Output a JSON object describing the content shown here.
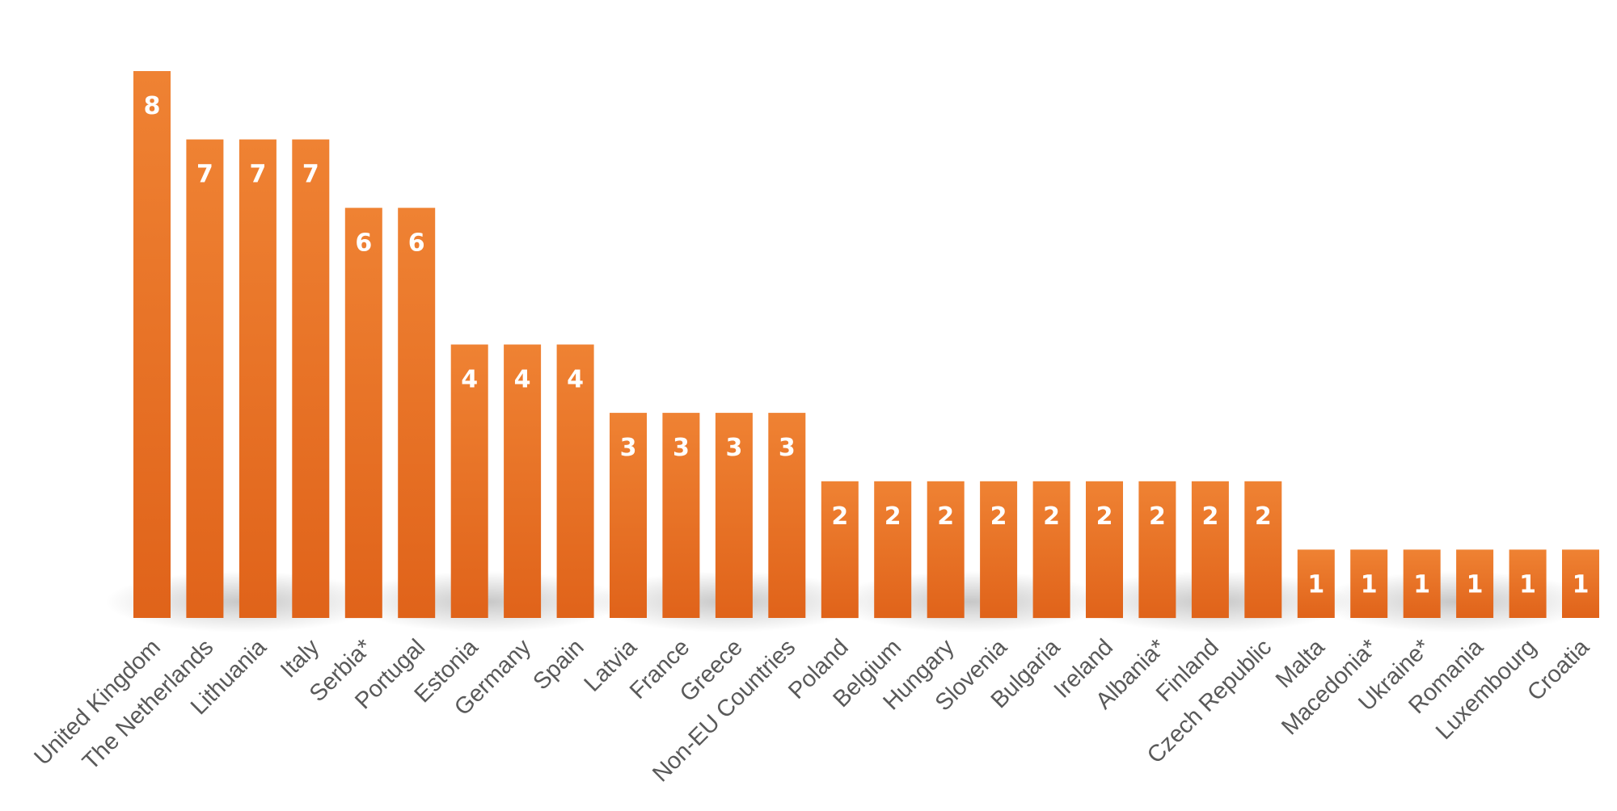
{
  "chart_data": {
    "type": "bar",
    "title": "",
    "xlabel": "",
    "ylabel": "",
    "ylim": [
      0,
      8
    ],
    "grid": false,
    "legend": "none",
    "bar_color_top": "#ef8233",
    "bar_color_bottom": "#e0631a",
    "label_color": "#ffffff",
    "tick_color": "#595959",
    "categories": [
      "United Kingdom",
      "The Netherlands",
      "Lithuania",
      "Italy",
      "Serbia*",
      "Portugal",
      "Estonia",
      "Germany",
      "Spain",
      "Latvia",
      "France",
      "Greece",
      "Non-EU Countries",
      "Poland",
      "Belgium",
      "Hungary",
      "Slovenia",
      "Bulgaria",
      "Ireland",
      "Albania*",
      "Finland",
      "Czech Republic",
      "Malta",
      "Macedonia*",
      "Ukraine*",
      "Romania",
      "Luxembourg",
      "Croatia"
    ],
    "values": [
      8,
      7,
      7,
      7,
      6,
      6,
      4,
      4,
      4,
      3,
      3,
      3,
      3,
      2,
      2,
      2,
      2,
      2,
      2,
      2,
      2,
      2,
      1,
      1,
      1,
      1,
      1,
      1
    ],
    "data_labels": [
      "8",
      "7",
      "7",
      "7",
      "6",
      "6",
      "4",
      "4",
      "4",
      "3",
      "3",
      "3",
      "3",
      "2",
      "2",
      "2",
      "2",
      "2",
      "2",
      "2",
      "2",
      "2",
      "1",
      "1",
      "1",
      "1",
      "1",
      "1"
    ]
  }
}
